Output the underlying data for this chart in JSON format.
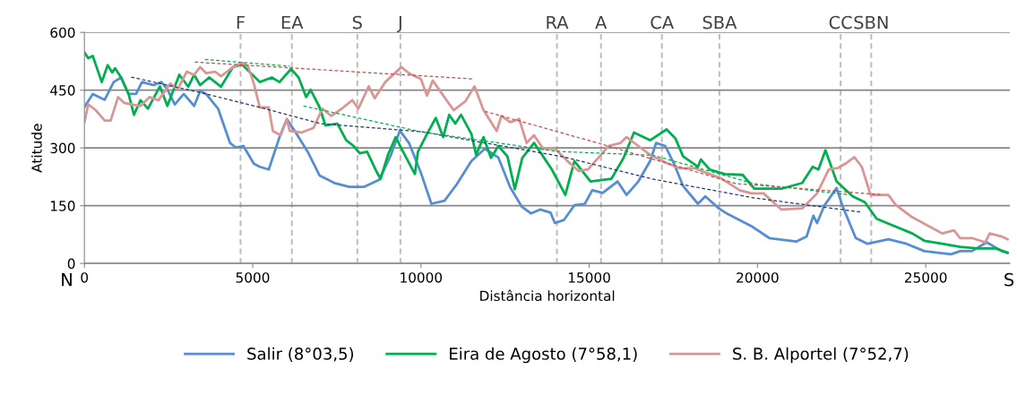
{
  "chart_data": {
    "type": "line",
    "xlabel": "Distância horizontal",
    "ylabel": "Atitude",
    "xlim": [
      0,
      27500
    ],
    "xticks": [
      0,
      5000,
      10000,
      15000,
      20000,
      25000
    ],
    "ylim": [
      0,
      600
    ],
    "yticks": [
      0,
      150,
      300,
      450,
      600
    ],
    "grid": "y",
    "legend": "bottom",
    "line_style": "solid",
    "annotations": [
      "N",
      "S"
    ],
    "ref_lines": [
      {
        "axis": "x",
        "value": 4640,
        "label": "F",
        "color": "#bfbfbf",
        "line_style": "dashed"
      },
      {
        "axis": "x",
        "value": 6165,
        "label": "EA",
        "color": "#bfbfbf",
        "line_style": "dashed"
      },
      {
        "axis": "x",
        "value": 8110,
        "label": "S",
        "color": "#bfbfbf",
        "line_style": "dashed"
      },
      {
        "axis": "x",
        "value": 9390,
        "label": "J",
        "color": "#bfbfbf",
        "line_style": "dashed"
      },
      {
        "axis": "x",
        "value": 14040,
        "label": "RA",
        "color": "#bfbfbf",
        "line_style": "dashed"
      },
      {
        "axis": "x",
        "value": 15350,
        "label": "A",
        "color": "#bfbfbf",
        "line_style": "dashed"
      },
      {
        "axis": "x",
        "value": 17160,
        "label": "CA",
        "color": "#bfbfbf",
        "line_style": "dashed"
      },
      {
        "axis": "x",
        "value": 18870,
        "label": "SBA",
        "color": "#bfbfbf",
        "line_style": "dashed"
      },
      {
        "axis": "x",
        "value": 22470,
        "label": "CC",
        "color": "#bfbfbf",
        "line_style": "dashed"
      },
      {
        "axis": "x",
        "value": 23380,
        "label": "SBN",
        "color": "#bfbfbf",
        "line_style": "dashed"
      }
    ],
    "series": [
      {
        "name": "Salir (8°03,5)",
        "color": "#558ed5",
        "x": [
          0,
          248,
          603,
          869,
          1090,
          1312,
          1534,
          1711,
          2066,
          2287,
          2465,
          2686,
          2952,
          3262,
          3440,
          3617,
          3972,
          4326,
          4503,
          4725,
          5035,
          5212,
          5478,
          5797,
          6015,
          6280,
          6635,
          6990,
          7430,
          7870,
          8315,
          8760,
          9110,
          9375,
          9645,
          10000,
          10310,
          10700,
          11060,
          11500,
          11900,
          12300,
          12650,
          13000,
          13270,
          13540,
          13850,
          13980,
          14250,
          14560,
          14870,
          15090,
          15400,
          15840,
          16110,
          16460,
          16810,
          16990,
          17260,
          17520,
          17790,
          18230,
          18450,
          18850,
          19120,
          19820,
          20350,
          21150,
          21460,
          21660,
          21770,
          21990,
          22120,
          22350,
          22520,
          22920,
          23270,
          23890,
          24430,
          24960,
          25750,
          26020,
          26370,
          26810,
          27260,
          27430
        ],
        "values": [
          406,
          440,
          425,
          471,
          483,
          440,
          440,
          471,
          463,
          471,
          452,
          413,
          440,
          409,
          448,
          440,
          402,
          313,
          301,
          305,
          259,
          251,
          244,
          328,
          375,
          340,
          290,
          228,
          209,
          199,
          199,
          217,
          282,
          345,
          313,
          235,
          155,
          163,
          205,
          266,
          298,
          275,
          198,
          147,
          130,
          140,
          132,
          105,
          113,
          151,
          155,
          190,
          183,
          213,
          178,
          213,
          266,
          313,
          305,
          259,
          201,
          155,
          174,
          143,
          128,
          97,
          66,
          57,
          70,
          124,
          105,
          151,
          167,
          196,
          151,
          66,
          51,
          63,
          51,
          32,
          24,
          32,
          32,
          55,
          32,
          28
        ]
      },
      {
        "name": "Eira de Agosto (7°58,1)",
        "color": "#00b050",
        "x": [
          0,
          115,
          248,
          515,
          691,
          824,
          913,
          1090,
          1312,
          1472,
          1667,
          1888,
          2243,
          2465,
          2820,
          3085,
          3262,
          3440,
          3706,
          4060,
          4414,
          4680,
          4947,
          5212,
          5567,
          5797,
          6140,
          6365,
          6590,
          6720,
          6990,
          7160,
          7520,
          7780,
          8000,
          8180,
          8400,
          8670,
          8800,
          9020,
          9250,
          9470,
          9820,
          9910,
          10180,
          10440,
          10660,
          10840,
          11020,
          11190,
          11500,
          11640,
          11860,
          12080,
          12300,
          12570,
          12790,
          13010,
          13360,
          13630,
          13890,
          14290,
          14560,
          15040,
          15660,
          16020,
          16330,
          16810,
          17300,
          17560,
          17790,
          18230,
          18320,
          18580,
          19030,
          19560,
          19910,
          20710,
          21330,
          21640,
          21810,
          22020,
          22350,
          22830,
          23190,
          23540,
          24600,
          24960,
          25490,
          26020,
          26550,
          27080,
          27430
        ],
        "values": [
          548,
          533,
          539,
          471,
          515,
          496,
          507,
          483,
          440,
          386,
          424,
          402,
          460,
          409,
          490,
          459,
          490,
          463,
          483,
          459,
          510,
          517,
          494,
          471,
          483,
          471,
          505,
          483,
          432,
          451,
          405,
          359,
          363,
          320,
          305,
          286,
          290,
          240,
          220,
          282,
          328,
          290,
          232,
          290,
          336,
          378,
          328,
          386,
          363,
          386,
          336,
          282,
          328,
          274,
          305,
          278,
          193,
          274,
          313,
          278,
          244,
          178,
          266,
          213,
          220,
          274,
          340,
          320,
          348,
          325,
          278,
          251,
          270,
          244,
          232,
          230,
          194,
          194,
          209,
          251,
          244,
          294,
          213,
          174,
          159,
          116,
          78,
          59,
          51,
          43,
          39,
          39,
          28
        ]
      },
      {
        "name": "S. B. Alportel (7°52,7)",
        "color": "#d99694",
        "x": [
          0,
          115,
          336,
          603,
          780,
          1000,
          1180,
          1400,
          1667,
          1933,
          2200,
          2553,
          2770,
          3040,
          3262,
          3440,
          3617,
          3883,
          4060,
          4414,
          4680,
          4857,
          5035,
          5212,
          5478,
          5600,
          5830,
          6015,
          6100,
          6450,
          6810,
          7070,
          7340,
          7690,
          7960,
          8140,
          8450,
          8625,
          8940,
          9420,
          9645,
          10000,
          10180,
          10350,
          10970,
          11320,
          11590,
          11860,
          12250,
          12390,
          12650,
          12920,
          13140,
          13360,
          13630,
          13980,
          14340,
          14690,
          14960,
          15310,
          15570,
          15930,
          16110,
          16460,
          16810,
          17350,
          17700,
          18140,
          18580,
          18940,
          19470,
          19820,
          20180,
          20710,
          21330,
          21770,
          22120,
          22390,
          22610,
          22880,
          23100,
          23360,
          23890,
          24120,
          24600,
          25490,
          25840,
          26020,
          26370,
          26770,
          26900,
          27260,
          27430
        ],
        "values": [
          367,
          413,
          398,
          371,
          371,
          432,
          417,
          413,
          409,
          432,
          424,
          467,
          452,
          498,
          490,
          510,
          494,
          498,
          486,
          510,
          521,
          513,
          467,
          405,
          405,
          344,
          333,
          375,
          344,
          340,
          352,
          402,
          383,
          405,
          424,
          402,
          460,
          429,
          471,
          510,
          494,
          479,
          436,
          475,
          398,
          421,
          460,
          398,
          344,
          383,
          367,
          375,
          313,
          333,
          298,
          298,
          267,
          240,
          244,
          278,
          305,
          313,
          328,
          305,
          282,
          259,
          247,
          247,
          232,
          220,
          190,
          182,
          182,
          140,
          143,
          182,
          244,
          248,
          259,
          276,
          251,
          178,
          178,
          151,
          120,
          78,
          86,
          66,
          66,
          55,
          78,
          70,
          63
        ]
      },
      {
        "type": "line",
        "color": "#1f3b6e",
        "line_style": "dashed",
        "x": [
          1390,
          3440,
          5230,
          7020,
          8780,
          10035,
          14220,
          16890,
          19910,
          23110
        ],
        "values": [
          484,
          444,
          405,
          363,
          351,
          342,
          277,
          219,
          170,
          133
        ]
      },
      {
        "type": "line",
        "color": "#00b050",
        "line_style": "dashed",
        "x": [
          3580,
          6110
        ],
        "values": [
          530,
          512
        ]
      },
      {
        "type": "line",
        "color": "#00b050",
        "line_style": "dashed",
        "x": [
          6510,
          10000,
          14040,
          16890,
          19910,
          22660
        ],
        "values": [
          409,
          342,
          291,
          281,
          207,
          179
        ]
      },
      {
        "type": "line",
        "color": "#c0504d",
        "line_style": "dashed",
        "x": [
          3280,
          11560
        ],
        "values": [
          523,
          479
        ]
      },
      {
        "type": "line",
        "color": "#c0504d",
        "line_style": "dashed",
        "x": [
          11900,
          15290,
          19380,
          23650
        ],
        "values": [
          395,
          312,
          207,
          179
        ]
      }
    ]
  }
}
